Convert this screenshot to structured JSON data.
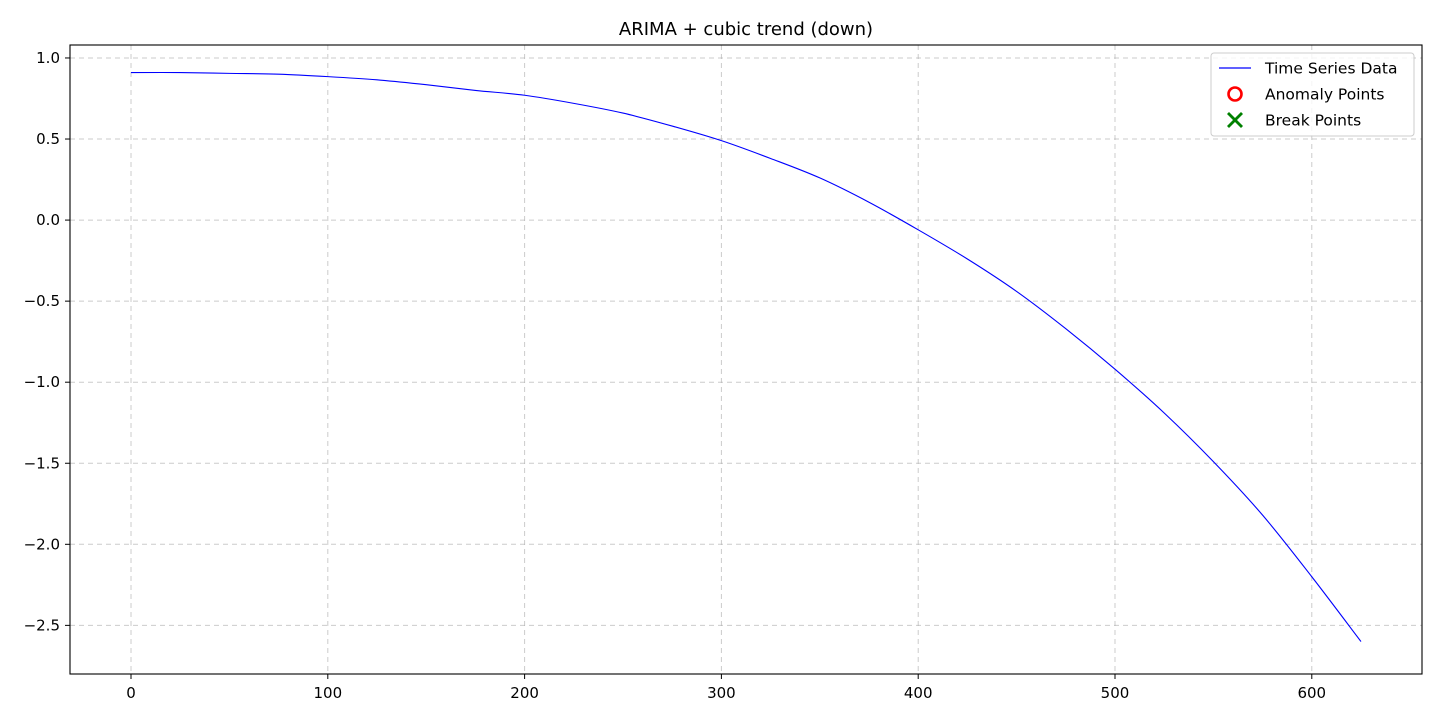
{
  "chart_data": {
    "type": "line",
    "title": "ARIMA + cubic trend (down)",
    "xlabel": "",
    "ylabel": "",
    "xlim": [
      -31,
      656
    ],
    "ylim": [
      -2.8,
      1.08
    ],
    "xticks": [
      0,
      100,
      200,
      300,
      400,
      500,
      600
    ],
    "xtick_labels": [
      "0",
      "100",
      "200",
      "300",
      "400",
      "500",
      "600"
    ],
    "yticks": [
      1.0,
      0.5,
      0.0,
      -0.5,
      -1.0,
      -1.5,
      -2.0,
      -2.5
    ],
    "ytick_labels": [
      "1.0",
      "0.5",
      "0.0",
      "−0.5",
      "−1.0",
      "−1.5",
      "−2.0",
      "−2.5"
    ],
    "grid": true,
    "legend_position": "top-right",
    "legend": [
      {
        "label": "Time Series Data",
        "marker": "line",
        "color": "#0000ff"
      },
      {
        "label": "Anomaly Points",
        "marker": "open-circle",
        "color": "#ff0000"
      },
      {
        "label": "Break Points",
        "marker": "x",
        "color": "#008000"
      }
    ],
    "series": [
      {
        "name": "Time Series Data",
        "color": "#0000ff",
        "x": [
          0,
          25,
          50,
          75,
          100,
          125,
          150,
          175,
          200,
          225,
          250,
          275,
          300,
          325,
          350,
          375,
          400,
          425,
          450,
          475,
          500,
          525,
          550,
          575,
          600,
          625
        ],
        "y": [
          0.91,
          0.91,
          0.905,
          0.9,
          0.885,
          0.865,
          0.835,
          0.8,
          0.77,
          0.72,
          0.66,
          0.58,
          0.49,
          0.38,
          0.26,
          0.11,
          -0.06,
          -0.24,
          -0.44,
          -0.67,
          -0.92,
          -1.19,
          -1.49,
          -1.82,
          -2.2,
          -2.6
        ]
      }
    ],
    "anomaly_points": [],
    "break_points": []
  }
}
